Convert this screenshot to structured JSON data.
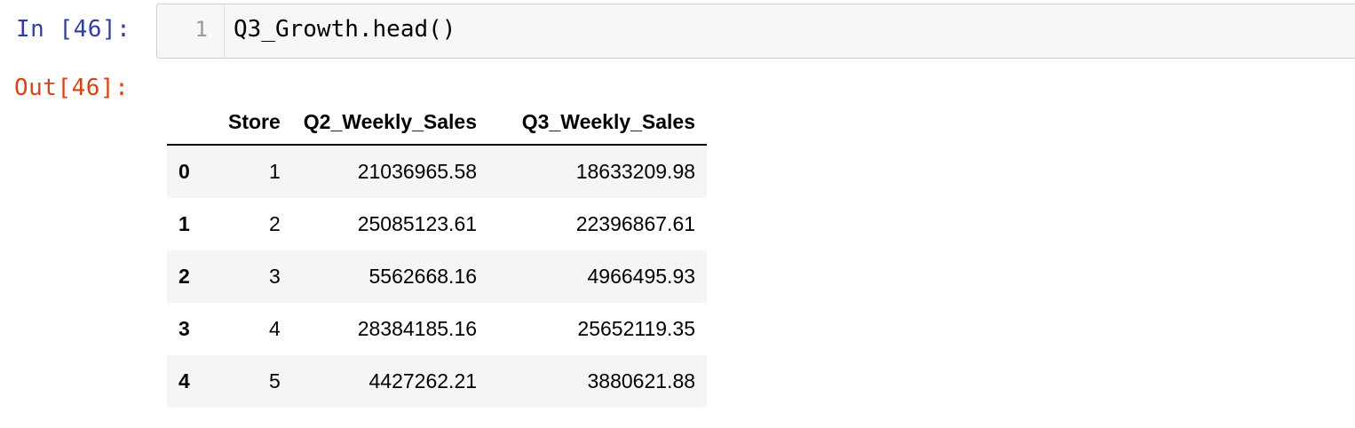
{
  "cell": {
    "in_prompt": "In [46]:",
    "out_prompt": "Out[46]:",
    "line_number": "1",
    "code": "Q3_Growth.head()"
  },
  "table": {
    "columns": [
      "",
      "Store",
      "Q2_Weekly_Sales",
      "Q3_Weekly_Sales"
    ],
    "rows": [
      {
        "index": "0",
        "store": "1",
        "q2": "21036965.58",
        "q3": "18633209.98"
      },
      {
        "index": "1",
        "store": "2",
        "q2": "25085123.61",
        "q3": "22396867.61"
      },
      {
        "index": "2",
        "store": "3",
        "q2": "5562668.16",
        "q3": "4966495.93"
      },
      {
        "index": "3",
        "store": "4",
        "q2": "28384185.16",
        "q3": "25652119.35"
      },
      {
        "index": "4",
        "store": "5",
        "q2": "4427262.21",
        "q3": "3880621.88"
      }
    ]
  },
  "colors": {
    "in_prompt": "#303f9f",
    "out_prompt": "#d84315",
    "input_bg": "#f7f7f7",
    "row_stripe": "#f5f5f5"
  }
}
